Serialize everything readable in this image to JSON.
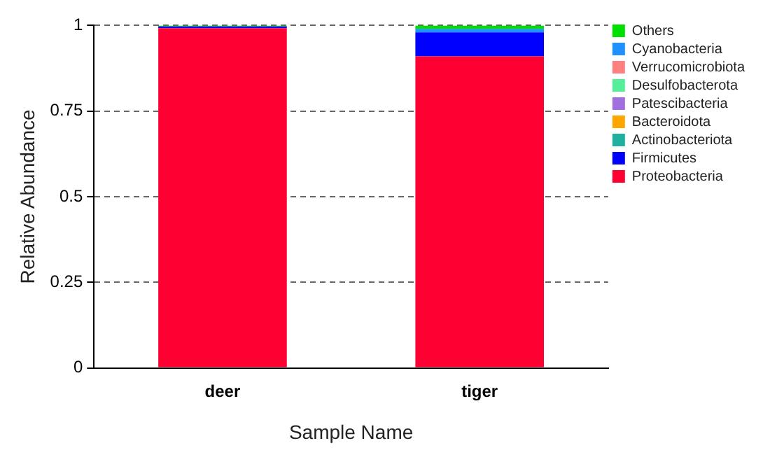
{
  "chart_data": {
    "type": "bar",
    "stacked": true,
    "xlabel": "Sample Name",
    "ylabel": "Relative Abundance",
    "categories": [
      "deer",
      "tiger"
    ],
    "series": [
      {
        "name": "Proteobacteria",
        "color": "#ff0033",
        "values": [
          0.992,
          0.91
        ]
      },
      {
        "name": "Firmicutes",
        "color": "#0000ff",
        "values": [
          0.005,
          0.07
        ]
      },
      {
        "name": "Actinobacteriota",
        "color": "#20b0a0",
        "values": [
          null,
          null
        ]
      },
      {
        "name": "Bacteroidota",
        "color": "#ffa500",
        "values": [
          null,
          null
        ]
      },
      {
        "name": "Patescibacteria",
        "color": "#a070e0",
        "values": [
          null,
          null
        ]
      },
      {
        "name": "Desulfobacterota",
        "color": "#55ee99",
        "values": [
          null,
          null
        ]
      },
      {
        "name": "Verrucomicrobiota",
        "color": "#ff8080",
        "values": [
          null,
          null
        ]
      },
      {
        "name": "Cyanobacteria",
        "color": "#1e90ff",
        "values": [
          null,
          0.01
        ]
      },
      {
        "name": "Others",
        "color": "#00e000",
        "values": [
          0.003,
          0.01
        ]
      }
    ],
    "ylim": [
      0,
      1
    ],
    "yticks": [
      0,
      0.25,
      0.5,
      0.75,
      1
    ],
    "grid": "y",
    "legend": "right"
  }
}
